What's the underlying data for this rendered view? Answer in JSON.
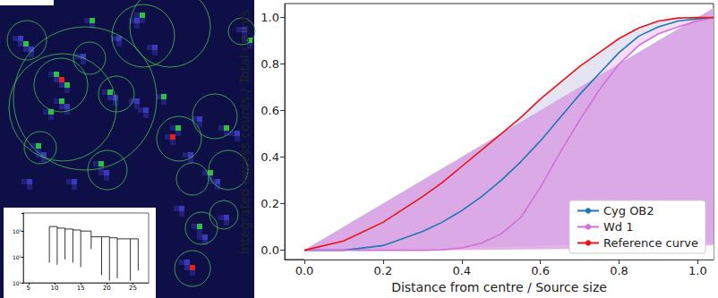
{
  "chart_data": [
    {
      "type": "line",
      "xlabel": "Distance from centre / Source size",
      "ylabel": "Integrated excess counts / Total counts",
      "x": [
        0,
        0.1,
        0.2,
        0.3,
        0.35,
        0.4,
        0.45,
        0.5,
        0.55,
        0.6,
        0.65,
        0.7,
        0.75,
        0.8,
        0.85,
        0.9,
        0.95,
        1.0,
        1.04
      ],
      "series": [
        {
          "name": "Cyg OB2",
          "color": "#1f77b4",
          "values": [
            0,
            0,
            0.02,
            0.08,
            0.12,
            0.17,
            0.23,
            0.3,
            0.38,
            0.47,
            0.57,
            0.67,
            0.76,
            0.85,
            0.92,
            0.96,
            0.985,
            0.995,
            1.0
          ],
          "errors": [
            0,
            0,
            0.005,
            0.01,
            0.012,
            0.014,
            0.015,
            0.016,
            0.017,
            0.018,
            0.018,
            0.018,
            0.017,
            0.016,
            0.015,
            0.013,
            0.012,
            0.012,
            0.01
          ]
        },
        {
          "name": "Wd 1",
          "color": "#d070d8",
          "values": [
            0,
            0,
            0,
            0,
            0.002,
            0.01,
            0.03,
            0.07,
            0.14,
            0.27,
            0.42,
            0.56,
            0.69,
            0.8,
            0.88,
            0.93,
            0.96,
            0.985,
            1.0
          ],
          "errors": [
            0,
            0,
            0,
            0.002,
            0.003,
            0.005,
            0.008,
            0.01,
            0.012,
            0.014,
            0.015,
            0.015,
            0.015,
            0.014,
            0.013,
            0.012,
            0.012,
            0.011,
            0.01
          ]
        },
        {
          "name": "Reference curve",
          "color": "#e8141a",
          "values": [
            0,
            0.04,
            0.12,
            0.23,
            0.29,
            0.36,
            0.43,
            0.5,
            0.57,
            0.65,
            0.72,
            0.79,
            0.85,
            0.91,
            0.955,
            0.985,
            0.998,
            1.0,
            1.0
          ]
        }
      ],
      "xlim": [
        -0.05,
        1.04
      ],
      "ylim": [
        -0.04,
        1.06
      ],
      "xticks": [
        {
          "value": 0,
          "label": "0.0"
        },
        {
          "value": 0.2,
          "label": "0.2"
        },
        {
          "value": 0.4,
          "label": "0.4"
        },
        {
          "value": 0.6,
          "label": "0.6"
        },
        {
          "value": 0.8,
          "label": "0.8"
        },
        {
          "value": 1.0,
          "label": "1.0"
        }
      ],
      "yticks": [
        {
          "value": 0,
          "label": "0.0"
        },
        {
          "value": 0.2,
          "label": "0.2"
        },
        {
          "value": 0.4,
          "label": "0.4"
        },
        {
          "value": 0.6,
          "label": "0.6"
        },
        {
          "value": 0.8,
          "label": "0.8"
        },
        {
          "value": 1.0,
          "label": "1.0"
        }
      ],
      "legend": "lower right",
      "grid": false
    },
    {
      "type": "dendrogram",
      "log": "y",
      "xlim": [
        4,
        28
      ],
      "ylim": [
        10,
        5000
      ],
      "xticks": [
        5,
        10,
        15,
        20,
        25
      ],
      "yticks": [
        {
          "value": 10,
          "label": "10¹"
        },
        {
          "value": 100,
          "label": "10²"
        },
        {
          "value": 1000,
          "label": "10³"
        }
      ],
      "branches": [
        [
          9,
          60,
          1500
        ],
        [
          10.5,
          50,
          1500
        ],
        [
          12,
          80,
          1300
        ],
        [
          13.5,
          60,
          1200
        ],
        [
          15,
          40,
          1100
        ],
        [
          17,
          200,
          1000
        ],
        [
          19,
          20,
          600
        ],
        [
          20.5,
          12,
          600
        ],
        [
          22,
          15,
          550
        ],
        [
          24.5,
          12,
          500
        ],
        [
          26,
          30,
          500
        ]
      ],
      "joins": [
        [
          9,
          10.5,
          1500
        ],
        [
          10.5,
          12,
          1300
        ],
        [
          12,
          13.5,
          1200
        ],
        [
          13.5,
          15,
          1100
        ],
        [
          15,
          17,
          1000
        ],
        [
          17,
          19,
          600
        ],
        [
          19,
          20.5,
          600
        ],
        [
          20.5,
          22,
          550
        ],
        [
          22,
          24.5,
          500
        ],
        [
          24.5,
          26,
          500
        ]
      ],
      "color": "#000000"
    }
  ]
}
